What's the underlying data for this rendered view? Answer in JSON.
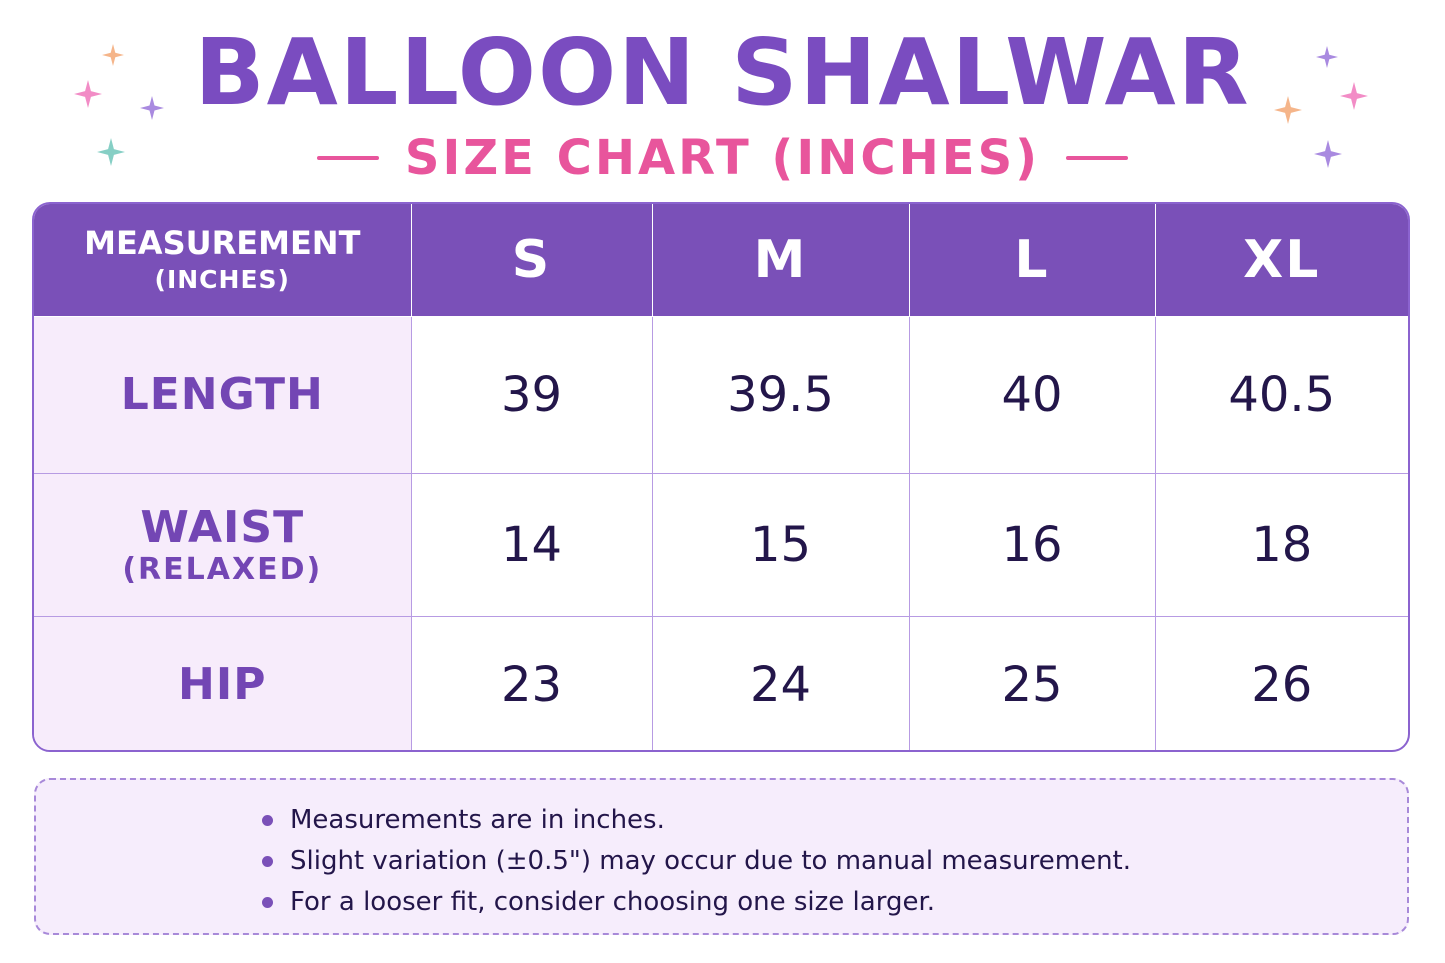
{
  "title": "BALLOON SHALWAR",
  "subtitle": "SIZE CHART (INCHES)",
  "colors": {
    "primary": "#7a50b8",
    "accent": "#e8559c",
    "label_bg": "#f7ecfb",
    "notes_bg": "#f6edfc"
  },
  "table": {
    "header": {
      "measurement": "MEASUREMENT",
      "measurement_unit": "(INCHES)",
      "sizes": [
        "S",
        "M",
        "L",
        "XL"
      ]
    },
    "rows": [
      {
        "label": "LENGTH",
        "sublabel": "",
        "values": [
          "39",
          "39.5",
          "40",
          "40.5"
        ]
      },
      {
        "label": "WAIST",
        "sublabel": "(RELAXED)",
        "values": [
          "14",
          "15",
          "16",
          "18"
        ]
      },
      {
        "label": "HIP",
        "sublabel": "",
        "values": [
          "23",
          "24",
          "25",
          "26"
        ]
      }
    ]
  },
  "notes": [
    "Measurements are in inches.",
    "Slight variation (±0.5\") may occur due to manual measurement.",
    "For a looser fit, consider choosing one size larger."
  ]
}
